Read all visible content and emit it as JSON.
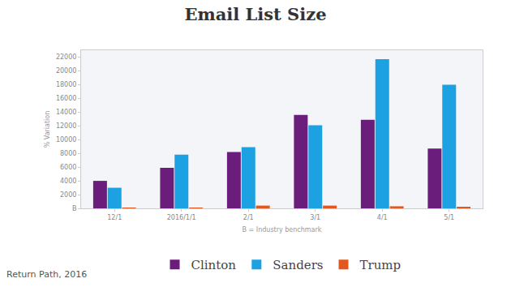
{
  "chart_data": {
    "type": "bar",
    "title": "Email List Size",
    "x_label": "B = Industry benchmark",
    "y_label": "% Variation",
    "categories": [
      "12/1",
      "2016/1/1",
      "2/1",
      "3/1",
      "4/1",
      "5/1"
    ],
    "series": [
      {
        "name": "Clinton",
        "color": "#6b1d7b",
        "values": [
          4000,
          5900,
          8200,
          13600,
          12900,
          8700
        ]
      },
      {
        "name": "Sanders",
        "color": "#1ca1e2",
        "values": [
          3000,
          7800,
          8900,
          12100,
          21700,
          18000
        ]
      },
      {
        "name": "Trump",
        "color": "#e2561f",
        "values": [
          100,
          100,
          400,
          400,
          300,
          200
        ]
      }
    ],
    "ylim": [
      0,
      23000
    ],
    "yticks": [
      {
        "value": 0,
        "label": "B"
      },
      2000,
      4000,
      6000,
      8000,
      10000,
      12000,
      14000,
      16000,
      18000,
      20000,
      22000
    ],
    "grid": false,
    "legend": "bottom",
    "annotations": [
      "Return Path, 2016"
    ]
  }
}
